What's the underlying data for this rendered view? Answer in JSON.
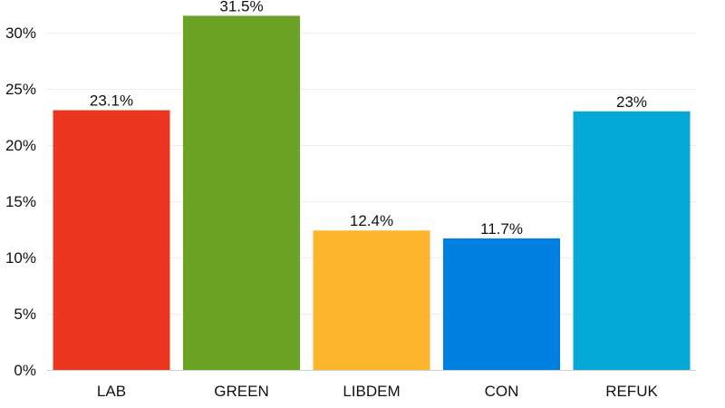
{
  "chart_data": {
    "type": "bar",
    "categories": [
      "LAB",
      "GREEN",
      "LIBDEM",
      "CON",
      "REFUK"
    ],
    "values": [
      23.1,
      31.5,
      12.4,
      11.7,
      23
    ],
    "data_labels": [
      "23.1%",
      "31.5%",
      "12.4%",
      "11.7%",
      "23%"
    ],
    "colors": [
      "#ec3720",
      "#6aa323",
      "#fdb62c",
      "#0081e2",
      "#06a8d6"
    ],
    "title": "",
    "xlabel": "",
    "ylabel": "",
    "ylim": [
      0,
      30
    ],
    "yticks": [
      0,
      5,
      10,
      15,
      20,
      25,
      30
    ],
    "ytick_labels": [
      "0%",
      "5%",
      "10%",
      "15%",
      "20%",
      "25%",
      "30%"
    ],
    "grid": true,
    "legend": "none"
  }
}
